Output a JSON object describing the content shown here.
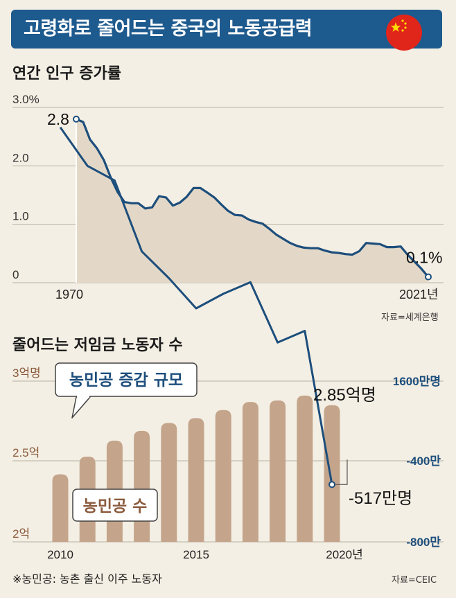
{
  "header": {
    "title": "고령화로 줄어드는 중국의 노동공급력"
  },
  "chart_data": [
    {
      "type": "area",
      "title": "연간 인구 증가률",
      "y_ticks": [
        "3.0%",
        "2.0",
        "1.0",
        "0"
      ],
      "ylim": [
        0,
        3.0
      ],
      "x_labels": [
        "1970",
        "2021년"
      ],
      "x": [
        1970,
        1971,
        1972,
        1973,
        1974,
        1975,
        1976,
        1977,
        1978,
        1979,
        1980,
        1981,
        1982,
        1983,
        1984,
        1985,
        1986,
        1987,
        1988,
        1989,
        1990,
        1991,
        1992,
        1993,
        1994,
        1995,
        1996,
        1997,
        1998,
        1999,
        2000,
        2001,
        2002,
        2003,
        2004,
        2005,
        2006,
        2007,
        2008,
        2009,
        2010,
        2011,
        2012,
        2013,
        2014,
        2015,
        2016,
        2017,
        2018,
        2019,
        2020,
        2021
      ],
      "values": [
        2.8,
        2.75,
        2.45,
        2.3,
        2.1,
        1.8,
        1.55,
        1.38,
        1.36,
        1.36,
        1.27,
        1.29,
        1.48,
        1.46,
        1.32,
        1.37,
        1.47,
        1.62,
        1.62,
        1.54,
        1.46,
        1.34,
        1.23,
        1.16,
        1.15,
        1.08,
        1.04,
        1.01,
        0.92,
        0.82,
        0.75,
        0.68,
        0.63,
        0.6,
        0.59,
        0.59,
        0.55,
        0.52,
        0.51,
        0.49,
        0.48,
        0.54,
        0.68,
        0.67,
        0.66,
        0.61,
        0.61,
        0.62,
        0.48,
        0.36,
        0.24,
        0.1
      ],
      "annotations": [
        {
          "x": 1970,
          "y": 2.8,
          "text": "2.8"
        },
        {
          "x": 2021,
          "y": 0.1,
          "text": "0.1%"
        }
      ],
      "source": "자료=세계은행"
    },
    {
      "type": "bar",
      "title": "줄어드는 저임금 노동자 수",
      "categories": [
        2010,
        2011,
        2012,
        2013,
        2014,
        2015,
        2016,
        2017,
        2018,
        2019,
        2020
      ],
      "x_labels": [
        "2010",
        "2015",
        "2020년"
      ],
      "left_ticks": [
        "3억명",
        "2.5억",
        "2억"
      ],
      "left_ylim": [
        2.0,
        3.0
      ],
      "right_ticks": [
        "1600만명",
        "-400만",
        "-800만"
      ],
      "series": [
        {
          "name": "농민공 수",
          "type": "bar",
          "values": [
            2.42,
            2.53,
            2.63,
            2.69,
            2.74,
            2.77,
            2.82,
            2.87,
            2.88,
            2.91,
            2.85
          ]
        },
        {
          "name": "농민공 증감 규모",
          "type": "line",
          "values": [
            1245,
            1055,
            983,
            633,
            501,
            352,
            424,
            481,
            184,
            241,
            -517
          ]
        }
      ],
      "annotations": [
        {
          "x": 2020,
          "series": "농민공 수",
          "text": "2.85억명"
        },
        {
          "x": 2020,
          "series": "농민공 증감 규모",
          "text": "-517만명"
        }
      ],
      "source": "자료=CEIC"
    }
  ],
  "footnote": "※농민공: 농촌 출신 이주 노동자"
}
